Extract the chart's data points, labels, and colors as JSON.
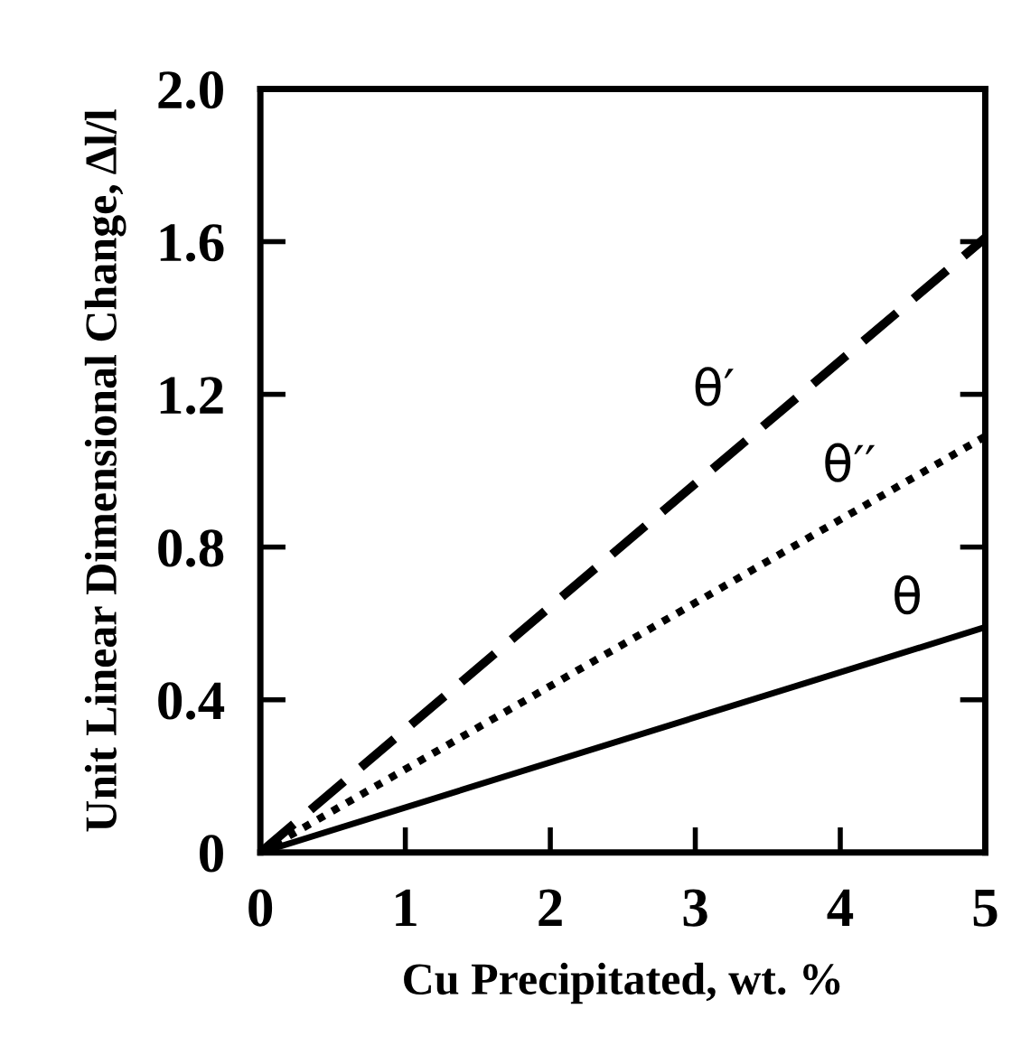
{
  "chart_data": {
    "type": "line",
    "xlabel": "Cu Precipitated, wt. %",
    "ylabel": "Unit Linear Dimensional Change, Δl/l",
    "xlim": [
      0,
      5
    ],
    "ylim": [
      0,
      2.0
    ],
    "xticks": [
      0,
      1,
      2,
      3,
      4,
      5
    ],
    "yticks": [
      0,
      0.4,
      0.8,
      1.2,
      1.6,
      {
        "value": 2.0,
        "label": "2.0"
      }
    ],
    "grid": false,
    "legend": false,
    "marker": "none",
    "x": [
      0,
      5
    ],
    "series": [
      {
        "name": "θ′",
        "color": "#000000",
        "line_style": "dashed",
        "values": [
          0,
          1.61
        ]
      },
      {
        "name": "θ′′",
        "color": "#000000",
        "line_style": "dotted",
        "values": [
          0,
          1.09
        ]
      },
      {
        "name": "θ",
        "color": "#000000",
        "line_style": "solid",
        "values": [
          0,
          0.59
        ]
      }
    ]
  }
}
